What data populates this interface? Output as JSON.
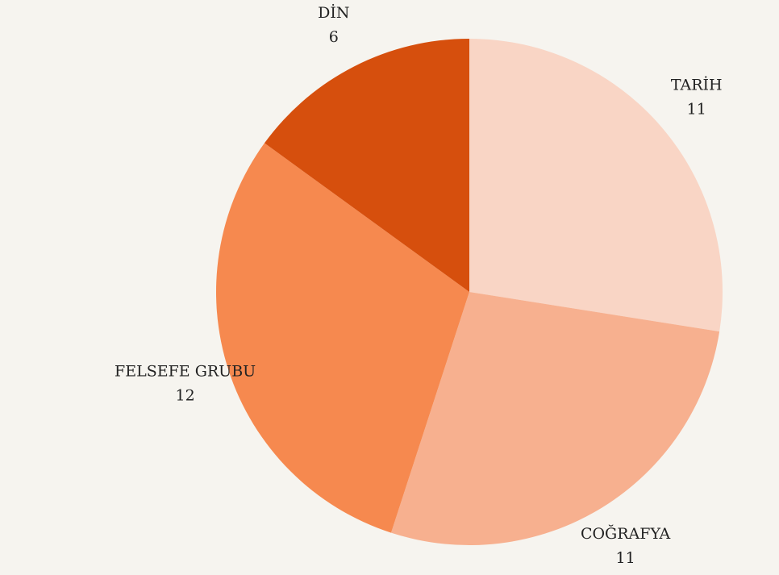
{
  "chart_data": {
    "type": "pie",
    "categories": [
      "TARİH",
      "COĞRAFYA",
      "FELSEFE GRUBU",
      "DİN"
    ],
    "values": [
      11,
      11,
      12,
      6
    ],
    "colors": [
      "#f9d5c5",
      "#f7b08f",
      "#f6894f",
      "#d64f0d"
    ]
  }
}
